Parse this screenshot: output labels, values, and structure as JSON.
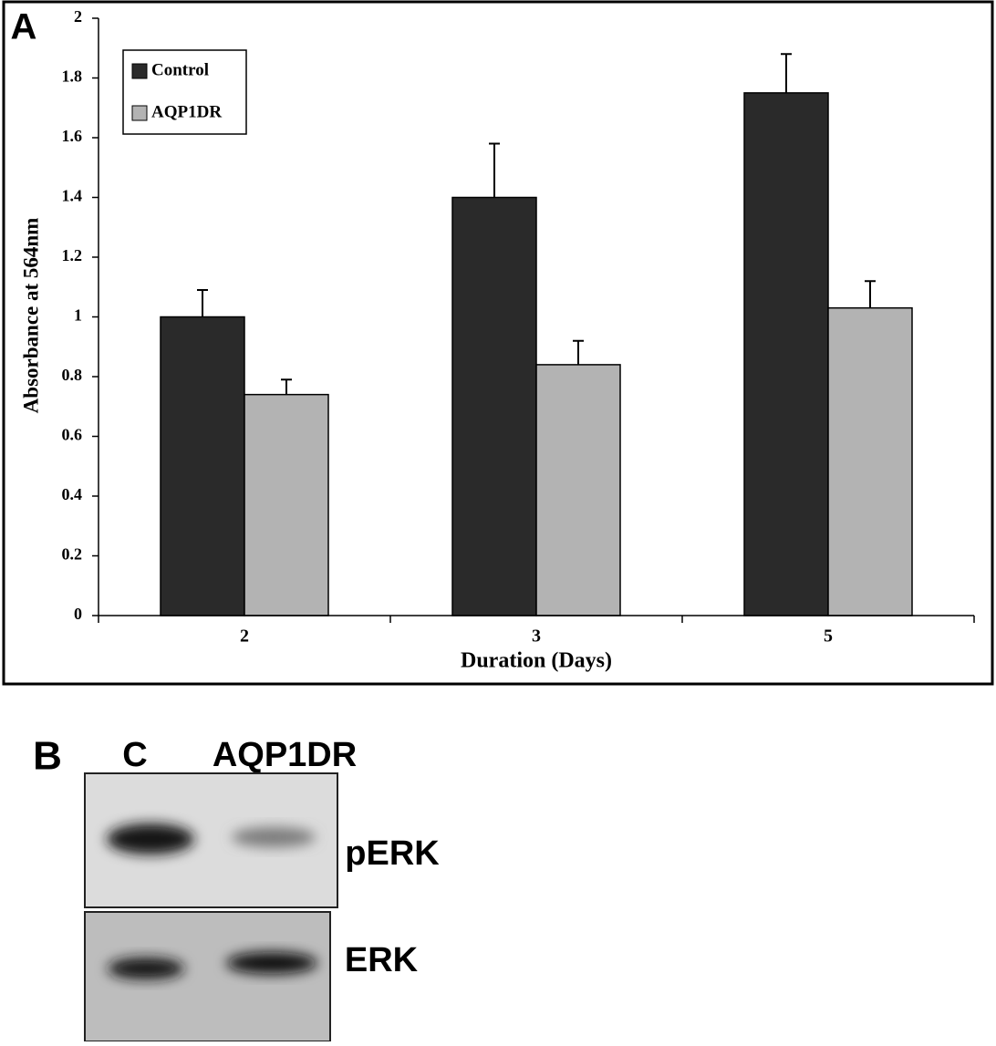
{
  "panel_a": {
    "label": "A"
  },
  "chart_data": {
    "type": "bar",
    "ylabel": "Absorbance at 564nm",
    "xlabel": "Duration (Days)",
    "categories": [
      "2",
      "3",
      "5"
    ],
    "series": [
      {
        "name": "Control",
        "color": "#2a2a2a",
        "values": [
          1.0,
          1.4,
          1.75
        ],
        "errors": [
          0.09,
          0.18,
          0.13
        ]
      },
      {
        "name": "AQP1DR",
        "color": "#b3b3b3",
        "values": [
          0.74,
          0.84,
          1.03
        ],
        "errors": [
          0.05,
          0.08,
          0.09
        ]
      }
    ],
    "ylim": [
      0,
      2
    ],
    "yticks": [
      0,
      0.2,
      0.4,
      0.6,
      0.8,
      1,
      1.2,
      1.4,
      1.6,
      1.8,
      2
    ],
    "legend": "upper-left",
    "grid": false
  },
  "panel_b": {
    "label": "B",
    "lanes": [
      "C",
      "AQP1DR"
    ],
    "bands": [
      "pERK",
      "ERK"
    ]
  }
}
